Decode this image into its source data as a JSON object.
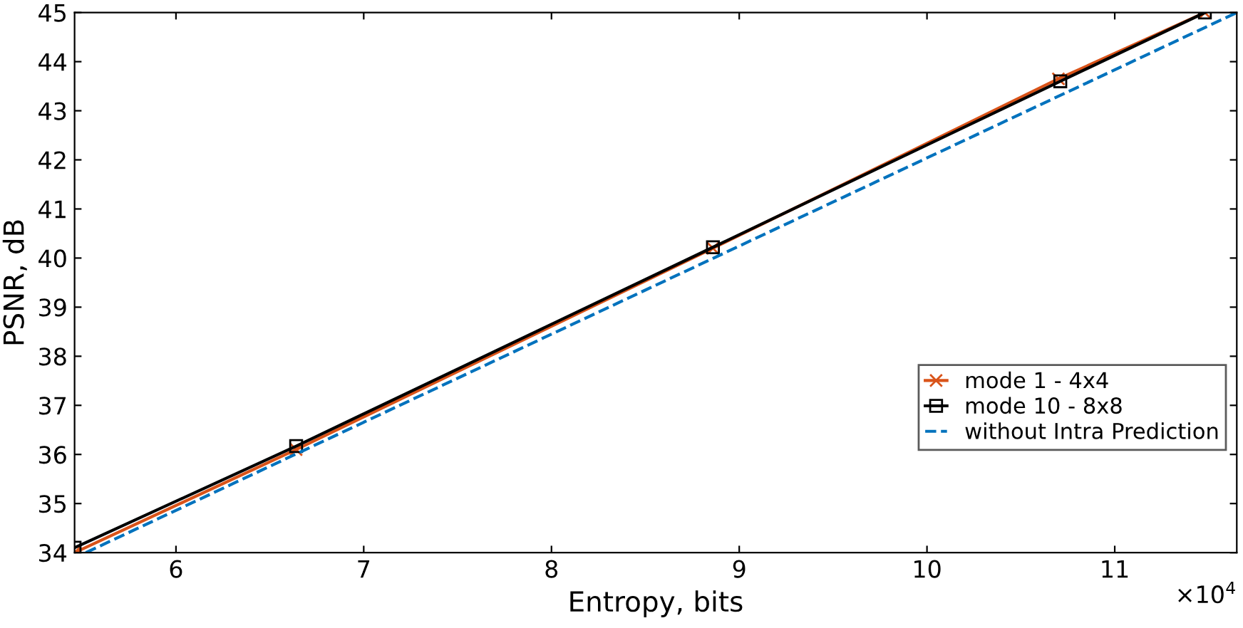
{
  "chart_data": {
    "type": "line",
    "xlabel": "Entropy, bits",
    "ylabel": "PSNR, dB",
    "xlim": [
      5.46,
      11.65
    ],
    "ylim": [
      34,
      45
    ],
    "xticks": [
      6,
      7,
      8,
      9,
      10,
      11
    ],
    "yticks": [
      34,
      35,
      36,
      37,
      38,
      39,
      40,
      41,
      42,
      43,
      44,
      45
    ],
    "annotations": [
      "×10$^{4}$"
    ],
    "series": [
      {
        "name": "mode 1 - 4x4",
        "color": "#d95319",
        "marker": "cross",
        "line_style": "solid",
        "x": [
          5.46,
          6.64,
          8.86,
          10.7,
          11.48
        ],
        "values": [
          34,
          36.1,
          40.2,
          43.65,
          45
        ]
      },
      {
        "name": "mode 10 - 8x8",
        "color": "#000000",
        "marker": "square",
        "line_style": "solid",
        "x": [
          5.46,
          6.64,
          8.86,
          10.71,
          11.48
        ],
        "values": [
          34.1,
          36.17,
          40.22,
          43.6,
          45
        ]
      },
      {
        "name": "without Intra Prediction",
        "color": "#0072bd",
        "marker": "none",
        "line_style": "dashed",
        "x": [
          5.52,
          11.65
        ],
        "values": [
          34,
          45
        ]
      }
    ],
    "grid": false,
    "legend": "bottom right"
  }
}
